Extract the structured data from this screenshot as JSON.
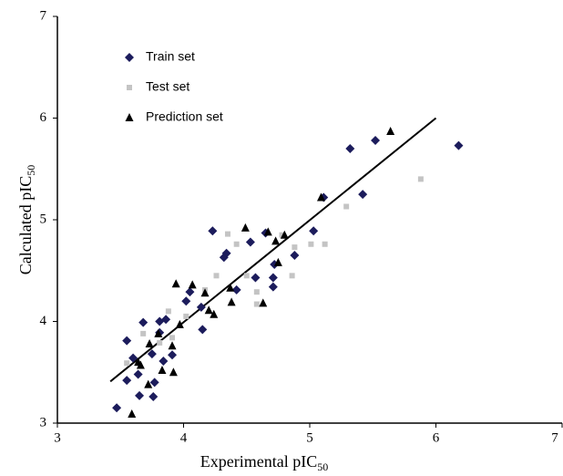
{
  "chart_data": {
    "type": "scatter",
    "x_label": "Experimental pIC",
    "x_label_subscript": "50",
    "y_label": "Calculated pIC",
    "y_label_subscript": "50",
    "xlim": [
      3,
      7
    ],
    "ylim": [
      3,
      7
    ],
    "xticks": [
      3,
      4,
      5,
      6,
      7
    ],
    "yticks": [
      3,
      4,
      5,
      6,
      7
    ],
    "series": [
      {
        "name": "Train set",
        "color": "#1c1c5c",
        "marker": "diamond",
        "x": [
          3.47,
          3.55,
          3.55,
          3.6,
          3.64,
          3.68,
          3.65,
          3.75,
          3.77,
          3.76,
          3.81,
          3.81,
          3.84,
          3.86,
          3.91,
          4.02,
          4.05,
          4.14,
          4.15,
          4.23,
          4.32,
          4.34,
          4.42,
          4.53,
          4.57,
          4.65,
          4.71,
          4.71,
          4.72,
          4.88,
          5.03,
          5.11,
          5.32,
          5.42,
          5.52,
          6.18
        ],
        "y": [
          3.15,
          3.81,
          3.42,
          3.64,
          3.48,
          3.99,
          3.27,
          3.68,
          3.4,
          3.26,
          4.0,
          3.89,
          3.61,
          4.02,
          3.67,
          4.2,
          4.29,
          4.14,
          3.92,
          4.89,
          4.63,
          4.67,
          4.31,
          4.78,
          4.43,
          4.87,
          4.34,
          4.43,
          4.56,
          4.65,
          4.89,
          5.22,
          5.7,
          5.25,
          5.78,
          5.73
        ]
      },
      {
        "name": "Test set",
        "color": "#c4c4c4",
        "marker": "square",
        "x": [
          3.55,
          3.68,
          3.81,
          3.88,
          3.91,
          4.17,
          4.26,
          4.35,
          4.42,
          4.5,
          4.58,
          4.58,
          4.78,
          4.86,
          4.88,
          5.01,
          5.12,
          5.29,
          5.88,
          4.02
        ],
        "y": [
          3.59,
          3.88,
          3.79,
          4.1,
          3.84,
          4.31,
          4.45,
          4.86,
          4.76,
          4.45,
          4.29,
          4.17,
          4.85,
          4.45,
          4.73,
          4.76,
          4.76,
          5.13,
          5.4,
          4.05
        ]
      },
      {
        "name": "Prediction set",
        "color": "#000000",
        "marker": "triangle",
        "x": [
          3.59,
          3.64,
          3.66,
          3.73,
          3.72,
          3.8,
          3.83,
          3.91,
          3.92,
          3.94,
          3.97,
          4.07,
          4.17,
          4.2,
          4.24,
          4.38,
          4.49,
          4.63,
          4.67,
          4.73,
          4.75,
          4.8,
          5.09,
          5.64,
          4.37
        ],
        "y": [
          3.09,
          3.6,
          3.57,
          3.78,
          3.38,
          3.88,
          3.52,
          3.76,
          3.5,
          4.37,
          3.97,
          4.36,
          4.28,
          4.11,
          4.07,
          4.19,
          4.92,
          4.18,
          4.88,
          4.79,
          4.58,
          4.85,
          5.22,
          5.87,
          4.33
        ]
      }
    ],
    "fit_line": {
      "color": "#000000",
      "x": [
        3.42,
        6.0
      ],
      "y": [
        3.41,
        6.0
      ]
    }
  }
}
